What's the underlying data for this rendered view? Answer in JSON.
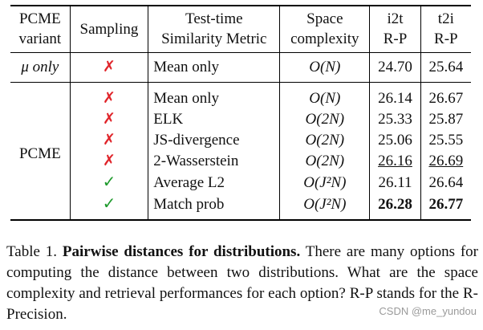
{
  "table": {
    "headers": [
      {
        "line1": "PCME",
        "line2": "variant"
      },
      {
        "line1": "Sampling",
        "line2": ""
      },
      {
        "line1": "Test-time",
        "line2": "Similarity Metric"
      },
      {
        "line1": "Space",
        "line2": "complexity"
      },
      {
        "line1": "i2t",
        "line2": "R-P"
      },
      {
        "line1": "t2i",
        "line2": "R-P"
      }
    ],
    "group1": {
      "variant": "μ only",
      "rows": [
        {
          "sampling": "✗",
          "metric": "Mean only",
          "complexity": "O(N)",
          "i2t": "24.70",
          "t2i": "25.64"
        }
      ]
    },
    "group2": {
      "variant": "PCME",
      "rows": [
        {
          "sampling": "✗",
          "metric": "Mean only",
          "complexity": "O(N)",
          "i2t": "26.14",
          "t2i": "26.67"
        },
        {
          "sampling": "✗",
          "metric": "ELK",
          "complexity": "O(2N)",
          "i2t": "25.33",
          "t2i": "25.87"
        },
        {
          "sampling": "✗",
          "metric": "JS-divergence",
          "complexity": "O(2N)",
          "i2t": "25.06",
          "t2i": "25.55"
        },
        {
          "sampling": "✗",
          "metric": "2-Wasserstein",
          "complexity": "O(2N)",
          "i2t": "26.16",
          "t2i": "26.69"
        },
        {
          "sampling": "✓",
          "metric": "Average L2",
          "complexity": "O(J²N)",
          "i2t": "26.11",
          "t2i": "26.64"
        },
        {
          "sampling": "✓",
          "metric": "Match prob",
          "complexity": "O(J²N)",
          "i2t": "26.28",
          "t2i": "26.77"
        }
      ]
    }
  },
  "caption": {
    "label": "Table 1.",
    "bold_title": "Pairwise distances for distributions.",
    "text": "There are many options for computing the distance between two distributions. What are the space complexity and retrieval performances for each option? R-P stands for the R-Precision."
  },
  "watermark": "CSDN @me_yundou",
  "colors": {
    "cross": "#e0242a",
    "check": "#1e9a2c"
  }
}
